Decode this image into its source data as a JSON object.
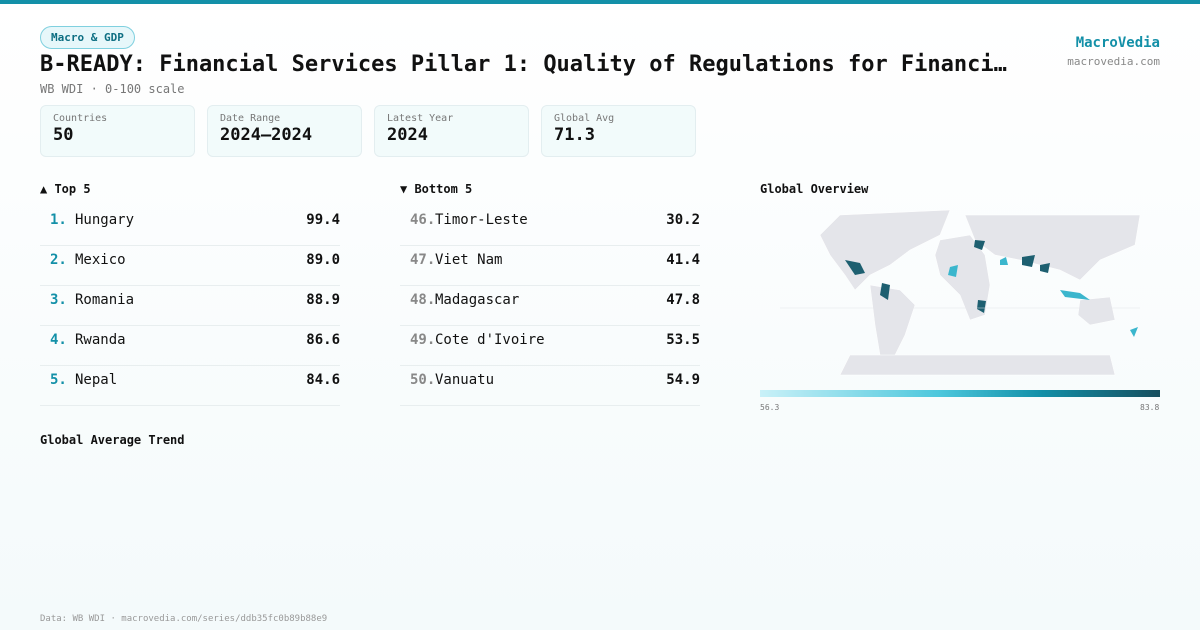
{
  "header": {
    "badge": "Macro & GDP",
    "title": "B-READY: Financial Services Pillar 1: Quality of Regulations for Financi…",
    "subtitle": "WB WDI · 0-100 scale",
    "brand": "MacroVedia",
    "site": "macrovedia.com"
  },
  "stats": [
    {
      "label": "Countries",
      "value": "50"
    },
    {
      "label": "Date Range",
      "value": "2024–2024"
    },
    {
      "label": "Latest Year",
      "value": "2024"
    },
    {
      "label": "Global Avg",
      "value": "71.3"
    }
  ],
  "top": {
    "heading": "▲ Top 5",
    "rows": [
      [
        "1.",
        "Hungary",
        "99.4"
      ],
      [
        "2.",
        "Mexico",
        "89.0"
      ],
      [
        "3.",
        "Romania",
        "88.9"
      ],
      [
        "4.",
        "Rwanda",
        "86.6"
      ],
      [
        "5.",
        "Nepal",
        "84.6"
      ]
    ]
  },
  "bottom": {
    "heading": "▼ Bottom 5",
    "rows": [
      [
        "46.",
        "Timor-Leste",
        "30.2"
      ],
      [
        "47.",
        "Viet Nam",
        "41.4"
      ],
      [
        "48.",
        "Madagascar",
        "47.8"
      ],
      [
        "49.",
        "Cote d'Ivoire",
        "53.5"
      ],
      [
        "50.",
        "Vanuatu",
        "54.9"
      ]
    ]
  },
  "map": {
    "heading": "Global Overview",
    "scale_min": "56.3",
    "scale_max": "83.8"
  },
  "trend": {
    "heading": "Global Average Trend"
  },
  "footer": "Data: WB WDI · macrovedia.com/series/ddb35fc0b89b88e9"
}
